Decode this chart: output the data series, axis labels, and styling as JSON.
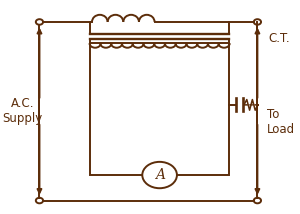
{
  "color": "#5C2D0A",
  "bg_color": "#FFFFFF",
  "figsize": [
    3.0,
    2.14
  ],
  "dpi": 100,
  "label_ac_supply": "A.C.\nSupply",
  "label_ct": "C.T.",
  "label_to_load": "To\nLoad",
  "label_ammeter": "A",
  "OL": 0.1,
  "OR": 0.88,
  "OT": 0.9,
  "OB": 0.06,
  "BL": 0.28,
  "BR": 0.78,
  "BT": 0.8,
  "BB": 0.18
}
